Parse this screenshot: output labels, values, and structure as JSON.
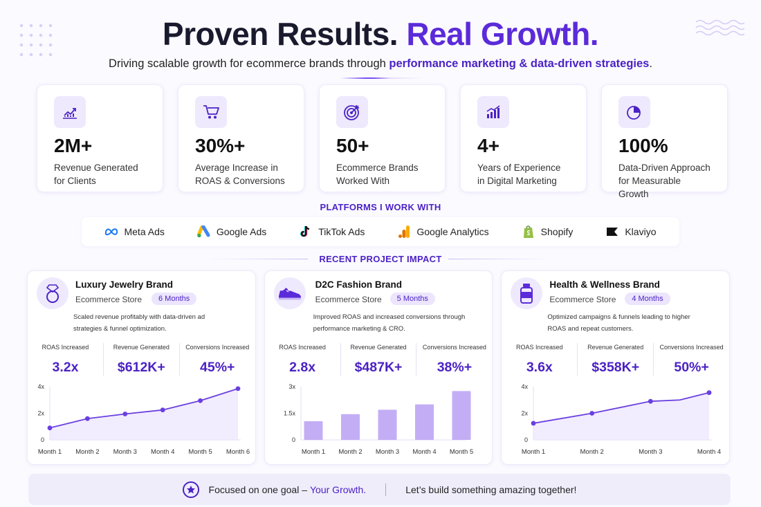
{
  "header": {
    "title_part1": "Proven Results.",
    "title_part2": "Real Growth.",
    "subtitle_part1": "Driving scalable growth for ecommerce brands through ",
    "subtitle_accent": "performance marketing & data-driven strategies",
    "subtitle_end": "."
  },
  "stats": [
    {
      "icon": "trend-chart-icon",
      "value": "2M+",
      "label": "Revenue Generated\nfor Clients"
    },
    {
      "icon": "shopping-cart-icon",
      "value": "30%+",
      "label": "Average Increase in\nROAS & Conversions"
    },
    {
      "icon": "target-icon",
      "value": "50+",
      "label": "Ecommerce Brands\nWorked With"
    },
    {
      "icon": "bar-growth-icon",
      "value": "4+",
      "label": "Years of Experience\nin Digital Marketing"
    },
    {
      "icon": "pie-chart-icon",
      "value": "100%",
      "label": "Data-Driven Approach\nfor Measurable Growth"
    }
  ],
  "platforms_title": "PLATFORMS I WORK WITH",
  "platforms": [
    {
      "icon": "meta-icon",
      "label": "Meta Ads"
    },
    {
      "icon": "google-ads-icon",
      "label": "Google Ads"
    },
    {
      "icon": "tiktok-icon",
      "label": "TikTok Ads"
    },
    {
      "icon": "google-analytics-icon",
      "label": "Google Analytics"
    },
    {
      "icon": "shopify-icon",
      "label": "Shopify"
    },
    {
      "icon": "klaviyo-icon",
      "label": "Klaviyo"
    }
  ],
  "projects_title": "RECENT PROJECT IMPACT",
  "projects": [
    {
      "icon": "ring-icon",
      "name": "Luxury Jewelry Brand",
      "type": "Ecommerce Store",
      "duration": "6 Months",
      "description": "Scaled revenue profitably with data-driven ad strategies & funnel optimization.",
      "metrics": [
        {
          "label": "ROAS Increased",
          "value": "3.2x"
        },
        {
          "label": "Revenue Generated",
          "value": "$612K+"
        },
        {
          "label": "Conversions Increased",
          "value": "45%+"
        }
      ]
    },
    {
      "icon": "sneaker-icon",
      "name": "D2C Fashion Brand",
      "type": "Ecommerce Store",
      "duration": "5 Months",
      "description": "Improved ROAS and increased conversions through performance marketing & CRO.",
      "metrics": [
        {
          "label": "ROAS Increased",
          "value": "2.8x"
        },
        {
          "label": "Revenue Generated",
          "value": "$487K+"
        },
        {
          "label": "Conversions Increased",
          "value": "38%+"
        }
      ]
    },
    {
      "icon": "supplement-bottle-icon",
      "name": "Health & Wellness Brand",
      "type": "Ecommerce Store",
      "duration": "4 Months",
      "description": "Optimized campaigns & funnels leading to higher ROAS and repeat customers.",
      "metrics": [
        {
          "label": "ROAS Increased",
          "value": "3.6x"
        },
        {
          "label": "Revenue Generated",
          "value": "$358K+"
        },
        {
          "label": "Conversions Increased",
          "value": "50%+"
        }
      ]
    }
  ],
  "chart_data": [
    {
      "type": "area",
      "categories": [
        "Month 1",
        "Month 2",
        "Month 3",
        "Month 4",
        "Month 5",
        "Month 6"
      ],
      "values": [
        0.9,
        1.6,
        1.95,
        2.25,
        2.95,
        3.85
      ],
      "ylim": [
        0,
        4
      ],
      "yticks": [
        "0",
        "2x",
        "4x"
      ],
      "ytick_values": [
        0,
        2,
        4
      ]
    },
    {
      "type": "bar",
      "categories": [
        "Month 1",
        "Month 2",
        "Month 3",
        "Month 4",
        "Month 5"
      ],
      "values": [
        1.05,
        1.45,
        1.7,
        2.0,
        2.75
      ],
      "ylim": [
        0,
        3
      ],
      "yticks": [
        "0",
        "1.5x",
        "3x"
      ],
      "ytick_values": [
        0,
        1.5,
        3
      ]
    },
    {
      "type": "area",
      "categories": [
        "Month 1",
        "Month 2",
        "Month 3",
        "Month 4"
      ],
      "x_positions": [
        0,
        1,
        2,
        3
      ],
      "values": [
        1.25,
        2.0,
        2.9,
        3.55
      ],
      "extra_point": {
        "x": 2.5,
        "y": 3.0
      },
      "ylim": [
        0,
        4
      ],
      "yticks": [
        "0",
        "2x",
        "4x"
      ],
      "ytick_values": [
        0,
        2,
        4
      ]
    }
  ],
  "footer": {
    "icon": "star-icon",
    "text1": "Focused on one goal – ",
    "accent": "Your Growth.",
    "text2": "Let’s build something amazing together!"
  },
  "colors": {
    "accent": "#5b2bd9",
    "accent_dark": "#4b22c4",
    "chart_line": "#6a3fe0",
    "chart_fill": "#ece5fd",
    "bar": "#c3aef5"
  }
}
